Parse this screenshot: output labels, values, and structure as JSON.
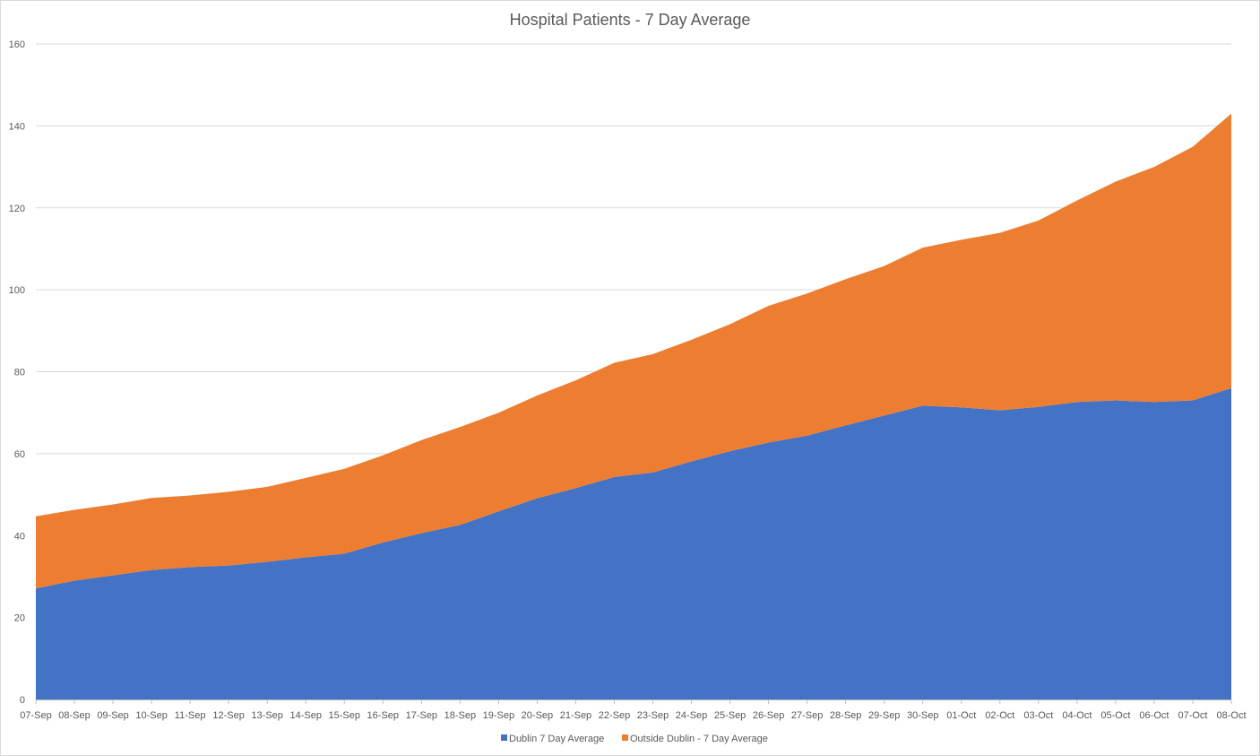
{
  "chart_data": {
    "type": "area",
    "stacked": true,
    "title": "Hospital Patients - 7 Day Average",
    "xlabel": "",
    "ylabel": "",
    "ylim": [
      0,
      160
    ],
    "yticks": [
      0,
      20,
      40,
      60,
      80,
      100,
      120,
      140,
      160
    ],
    "grid": true,
    "legend": "bottom",
    "categories": [
      "07-Sep",
      "08-Sep",
      "09-Sep",
      "10-Sep",
      "11-Sep",
      "12-Sep",
      "13-Sep",
      "14-Sep",
      "15-Sep",
      "16-Sep",
      "17-Sep",
      "18-Sep",
      "19-Sep",
      "20-Sep",
      "21-Sep",
      "22-Sep",
      "23-Sep",
      "24-Sep",
      "25-Sep",
      "26-Sep",
      "27-Sep",
      "28-Sep",
      "29-Sep",
      "30-Sep",
      "01-Oct",
      "02-Oct",
      "03-Oct",
      "04-Oct",
      "05-Oct",
      "06-Oct",
      "07-Oct",
      "08-Oct"
    ],
    "series": [
      {
        "name": "Dublin 7 Day Average",
        "color": "#4472c4",
        "values": [
          27.1,
          29,
          30.3,
          31.6,
          32.3,
          32.7,
          33.6,
          34.7,
          35.6,
          38.3,
          40.6,
          42.6,
          45.9,
          49.1,
          51.6,
          54.3,
          55.4,
          58.1,
          60.6,
          62.7,
          64.4,
          66.9,
          69.3,
          71.7,
          71.3,
          70.6,
          71.4,
          72.6,
          73,
          72.6,
          73,
          76
        ]
      },
      {
        "name": "Outside Dublin - 7 Day Average",
        "color": "#ed7d31",
        "values": [
          17.6,
          17.3,
          17.3,
          17.6,
          17.5,
          18,
          18.3,
          19.4,
          20.7,
          21.3,
          22.7,
          23.9,
          24.1,
          25.1,
          26.3,
          27.9,
          28.9,
          29.7,
          31,
          33.4,
          34.7,
          35.7,
          36.5,
          38.6,
          40.9,
          43.3,
          45.5,
          49.2,
          53.4,
          57.4,
          61.9,
          67
        ]
      }
    ]
  }
}
